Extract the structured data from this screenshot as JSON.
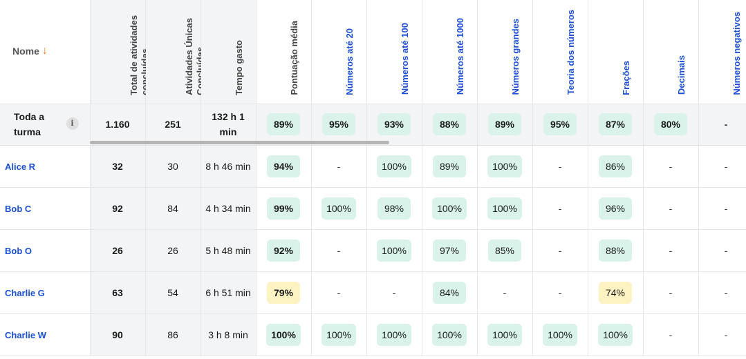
{
  "header": {
    "name_label": "Nome",
    "sort_icon": "arrow-down-icon",
    "columns": [
      {
        "label": "Total de atividades concluídas",
        "style": "grey"
      },
      {
        "label": "Atividades Únicas Concluídas",
        "style": "grey"
      },
      {
        "label": "Tempo gasto",
        "style": "grey"
      },
      {
        "label": "Pontuação média",
        "style": "grey"
      },
      {
        "label": "Números até 20",
        "style": "blue"
      },
      {
        "label": "Números até 100",
        "style": "blue"
      },
      {
        "label": "Números até 1000",
        "style": "blue"
      },
      {
        "label": "Números grandes",
        "style": "blue"
      },
      {
        "label": "Teoria dos números",
        "style": "blue"
      },
      {
        "label": "Frações",
        "style": "blue"
      },
      {
        "label": "Decimais",
        "style": "blue"
      },
      {
        "label": "Números negativos",
        "style": "blue"
      }
    ]
  },
  "summary": {
    "label": "Toda a turma",
    "info_icon": "info-icon",
    "total": "1.160",
    "unique": "251",
    "time": "132 h 1 min",
    "avg": "89%",
    "topics": [
      "95%",
      "93%",
      "88%",
      "89%",
      "95%",
      "87%",
      "80%",
      "-"
    ]
  },
  "colors": {
    "green_pill": "#d9f3ea",
    "yellow_pill": "#fcf2c2",
    "link_blue": "#1a4fd6",
    "sort_orange": "#f07f1a"
  },
  "students": [
    {
      "name": "Alice R",
      "total": "32",
      "unique": "30",
      "time": "8 h 46 min",
      "avg": "94%",
      "avg_color": "green",
      "topics": [
        "-",
        "100%",
        "89%",
        "100%",
        "-",
        "86%",
        "-",
        "-"
      ]
    },
    {
      "name": "Bob C",
      "total": "92",
      "unique": "84",
      "time": "4 h 34 min",
      "avg": "99%",
      "avg_color": "green",
      "topics": [
        "100%",
        "98%",
        "100%",
        "100%",
        "-",
        "96%",
        "-",
        "-"
      ]
    },
    {
      "name": "Bob O",
      "total": "26",
      "unique": "26",
      "time": "5 h 48 min",
      "avg": "92%",
      "avg_color": "green",
      "topics": [
        "-",
        "100%",
        "97%",
        "85%",
        "-",
        "88%",
        "-",
        "-"
      ]
    },
    {
      "name": "Charlie G",
      "total": "63",
      "unique": "54",
      "time": "6 h 51 min",
      "avg": "79%",
      "avg_color": "yellow",
      "topics": [
        "-",
        "-",
        "84%",
        "-",
        "-",
        "74%",
        "-",
        "-"
      ]
    },
    {
      "name": "Charlie W",
      "total": "90",
      "unique": "86",
      "time": "3 h 8 min",
      "avg": "100%",
      "avg_color": "green",
      "topics": [
        "100%",
        "100%",
        "100%",
        "100%",
        "100%",
        "100%",
        "-",
        "-"
      ]
    }
  ]
}
